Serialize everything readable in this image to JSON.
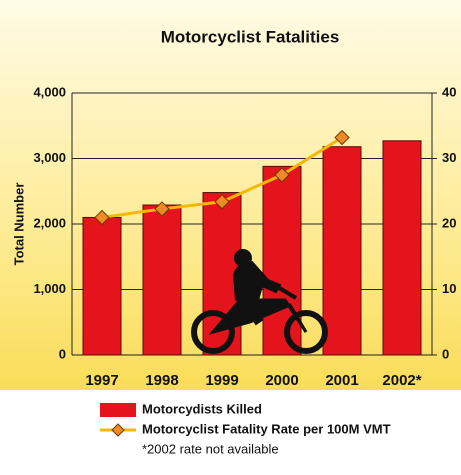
{
  "chart_data": {
    "type": "bar",
    "title": "Motorcyclist Fatalities",
    "y_label": "Total Number",
    "categories": [
      "1997",
      "1998",
      "1999",
      "2000",
      "2001",
      "2002*"
    ],
    "series": [
      {
        "name": "Motorcydists Killed",
        "type": "bar",
        "color": "#e5131b",
        "values": [
          2100,
          2290,
          2480,
          2880,
          3180,
          3270
        ]
      },
      {
        "name": "Motorcyclist Fatality Rate per 100M VMT",
        "type": "line",
        "axis": "y2",
        "color": "#f5b800",
        "marker_color": "#f08a24",
        "values": [
          21.0,
          22.3,
          23.4,
          27.5,
          33.2,
          null
        ]
      }
    ],
    "ylim": [
      0,
      4000
    ],
    "yticks": [
      0,
      {
        "value": 1000,
        "label": "1,000"
      },
      {
        "value": 2000,
        "label": "2,000"
      },
      {
        "value": 3000,
        "label": "3,000"
      },
      {
        "value": 4000,
        "label": "4,000"
      }
    ],
    "y2lim": [
      0,
      40
    ],
    "y2ticks": [
      0,
      10,
      20,
      30,
      40
    ],
    "grid": true,
    "note": "*2002 rate not available"
  }
}
